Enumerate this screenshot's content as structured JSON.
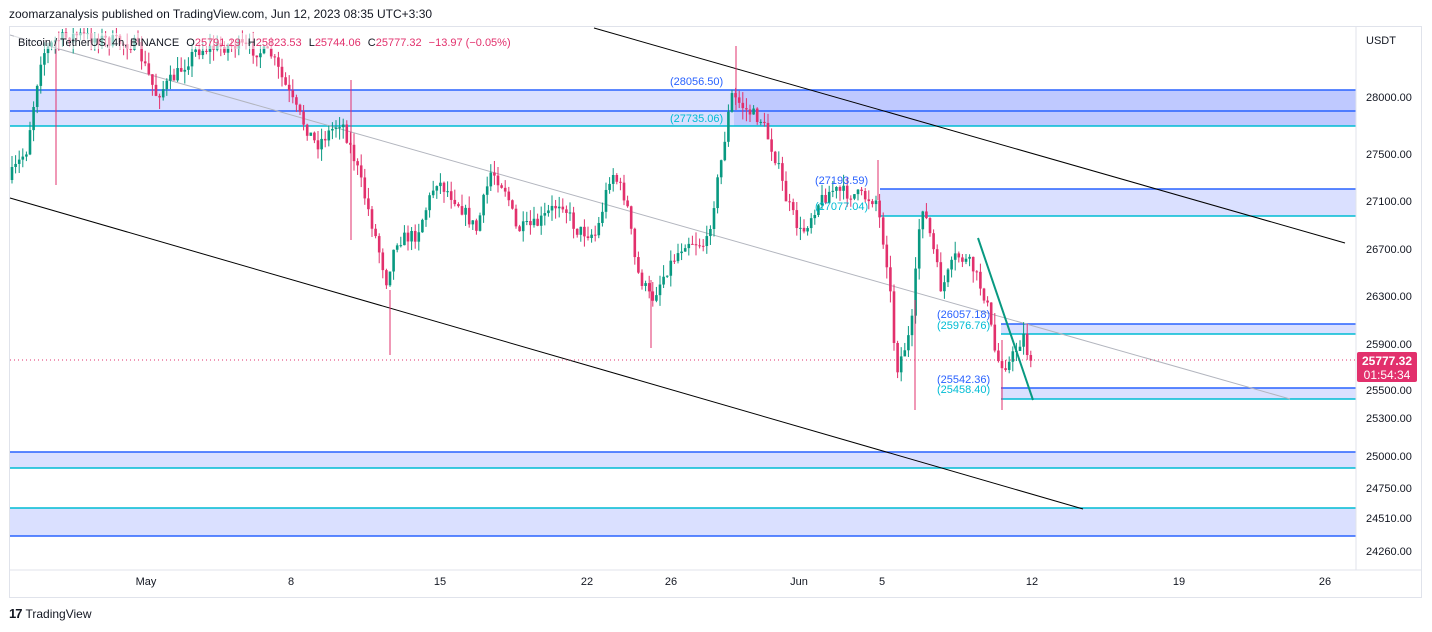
{
  "header": {
    "text": "zoomarzanalysis published on TradingView.com, Jun 12, 2023 08:35 UTC+3:30"
  },
  "footer": {
    "brand": "TradingView",
    "logo": "17"
  },
  "colors": {
    "up": "#089981",
    "down": "#e2306c",
    "zone_fill": "#d4daff",
    "zone_blue": "#2962ff",
    "zone_cyan": "#00bcd4",
    "trend": "#000000",
    "mid": "#b2b5be"
  },
  "chart_data": {
    "type": "candlestick",
    "symbol": "Bitcoin / TetherUS, 4h, BINANCE",
    "ohlc": {
      "o_label": "O",
      "open": "25791.29",
      "h_label": "H",
      "high": "25823.53",
      "l_label": "L",
      "low": "25744.06",
      "c_label": "C",
      "close": "25777.32",
      "change": "−13.97 (−0.05%)"
    },
    "currency": "USDT",
    "y_ticks": [
      "28000.00",
      "27500.00",
      "27100.00",
      "26700.00",
      "26300.00",
      "25900.00",
      "25500.00",
      "25300.00",
      "25000.00",
      "24750.00",
      "24510.00",
      "24260.00"
    ],
    "x_ticks": [
      "May",
      "8",
      "15",
      "22",
      "26",
      "Jun",
      "5",
      "12",
      "19",
      "26"
    ],
    "last_price": {
      "value": "25777.32",
      "countdown": "01:54:34"
    },
    "zones": [
      {
        "top": 28056.5,
        "bottom": 27735.06,
        "top_label": "(28056.50)",
        "bottom_label": "(27735.06)"
      },
      {
        "top": 27193.59,
        "bottom": 27077.04,
        "top_label": "(27193.59)",
        "bottom_label": "(27077.04)"
      },
      {
        "top": 26057.18,
        "bottom": 25976.76,
        "top_label": "(26057.18)",
        "bottom_label": "(25976.76)"
      },
      {
        "top": 25542.36,
        "bottom": 25458.4,
        "top_label": "(25542.36)",
        "bottom_label": "(25458.40)"
      },
      {
        "top": 25030,
        "bottom": 24900,
        "top_label": "",
        "bottom_label": ""
      },
      {
        "top": 24600,
        "bottom": 24380,
        "top_label": "",
        "bottom_label": ""
      }
    ]
  }
}
